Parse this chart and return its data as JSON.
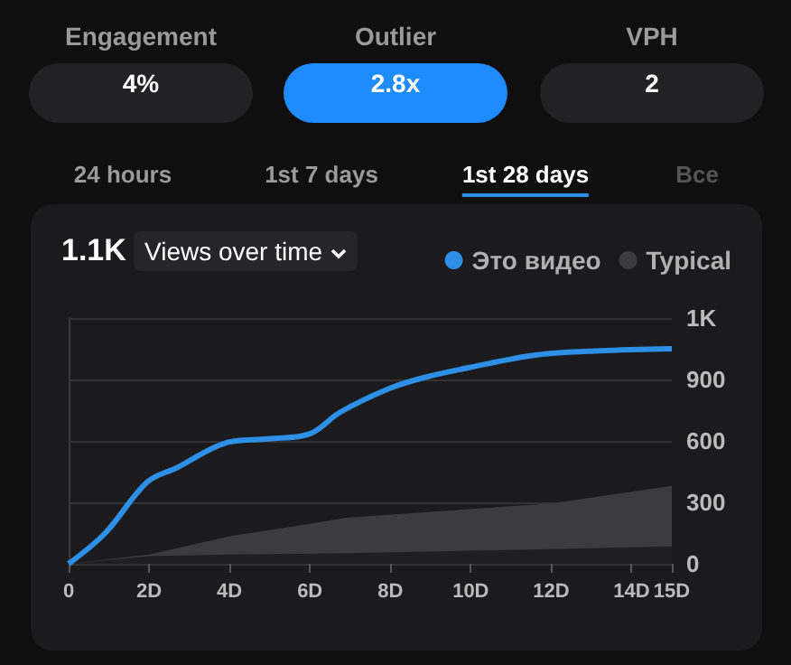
{
  "chart_data": {
    "type": "line",
    "title": "Views over time",
    "annotations": [
      "Engagement",
      "4%",
      "Outlier",
      "2.8x",
      "VPH",
      "2",
      "24 hours",
      "1st 7 days",
      "1st 28 days",
      "Все",
      "1.1K"
    ],
    "series": [
      {
        "name": "Это видео",
        "color": "#2d8fe6",
        "x": [
          0,
          0.91,
          1.96,
          2.7,
          3.9,
          4.95,
          6.0,
          6.75,
          7.96,
          8.85,
          10.0,
          11.65,
          13.2,
          15
        ],
        "values": [
          0,
          150,
          400,
          470,
          590,
          610,
          635,
          740,
          855,
          910,
          960,
          1020,
          1040,
          1050
        ]
      },
      {
        "name": "Typical",
        "type": "area",
        "color": "#3c3c3f",
        "x": [
          0,
          2,
          4,
          6,
          6.9,
          12,
          15
        ],
        "values": [
          0,
          45,
          135,
          195,
          225,
          295,
          380
        ]
      },
      {
        "type": "area",
        "color": "#1f1f21",
        "x": [
          0,
          2,
          4,
          6,
          6.9,
          12,
          15
        ],
        "values": [
          0,
          38,
          45,
          50,
          52,
          72,
          85
        ]
      }
    ],
    "xlim": [
      0,
      15
    ],
    "xticks": [
      0,
      {
        "value": 2,
        "label": "2D"
      },
      {
        "value": 4,
        "label": "4D"
      },
      {
        "value": 6,
        "label": "6D"
      },
      {
        "value": 8,
        "label": "8D"
      },
      {
        "value": 10,
        "label": "10D"
      },
      {
        "value": 12,
        "label": "12D"
      },
      {
        "value": 14,
        "label": "14D"
      },
      {
        "value": 15,
        "label": "15D"
      }
    ],
    "ylim": [
      0,
      1200
    ],
    "yticks": [
      0,
      300,
      600,
      900,
      {
        "value": 1200,
        "label": "1K"
      }
    ],
    "grid": "y",
    "legend": "top right",
    "marker": "none",
    "line_style": "solid"
  }
}
